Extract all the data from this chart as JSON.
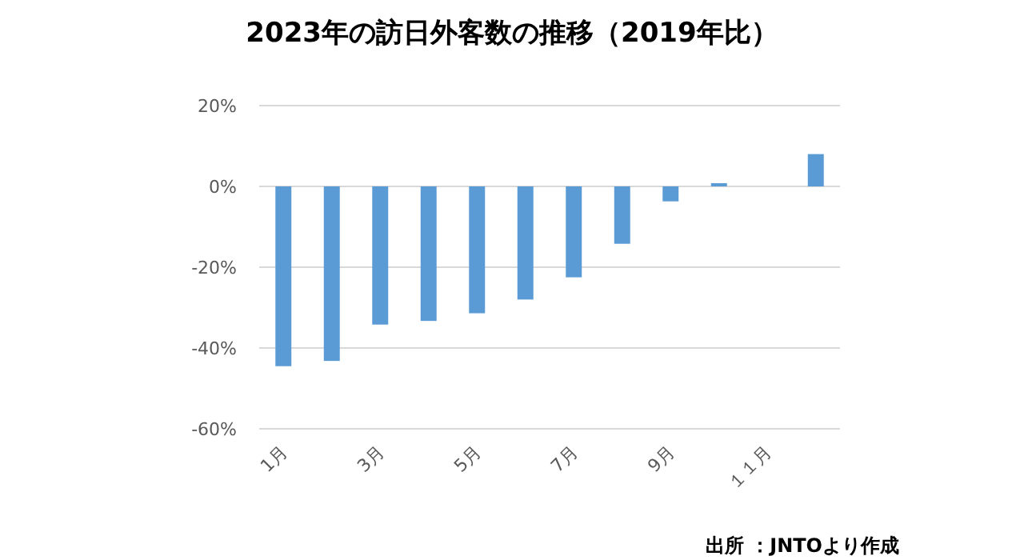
{
  "chart_data": {
    "type": "bar",
    "title": "2023年の訪日外客数の推移（2019年比）",
    "categories": [
      "1月",
      null,
      "3月",
      null,
      "5月",
      null,
      "7月",
      null,
      "9月",
      null,
      "１１月",
      null
    ],
    "values": [
      -44.5,
      -43.2,
      -34.2,
      -33.3,
      -31.4,
      -28.0,
      -22.5,
      -14.2,
      -3.7,
      0.8,
      null,
      8.0
    ],
    "color": "#5b9bd5",
    "ylim": [
      -60,
      20
    ],
    "yticks": [
      {
        "value": -60,
        "label": "-60%"
      },
      {
        "value": -40,
        "label": "-40%"
      },
      {
        "value": -20,
        "label": "-20%"
      },
      {
        "value": 0,
        "label": "0%"
      },
      {
        "value": 20,
        "label": "20%"
      }
    ],
    "grid": "y",
    "annotations": [
      "出所 ：JNTOより作成"
    ]
  }
}
